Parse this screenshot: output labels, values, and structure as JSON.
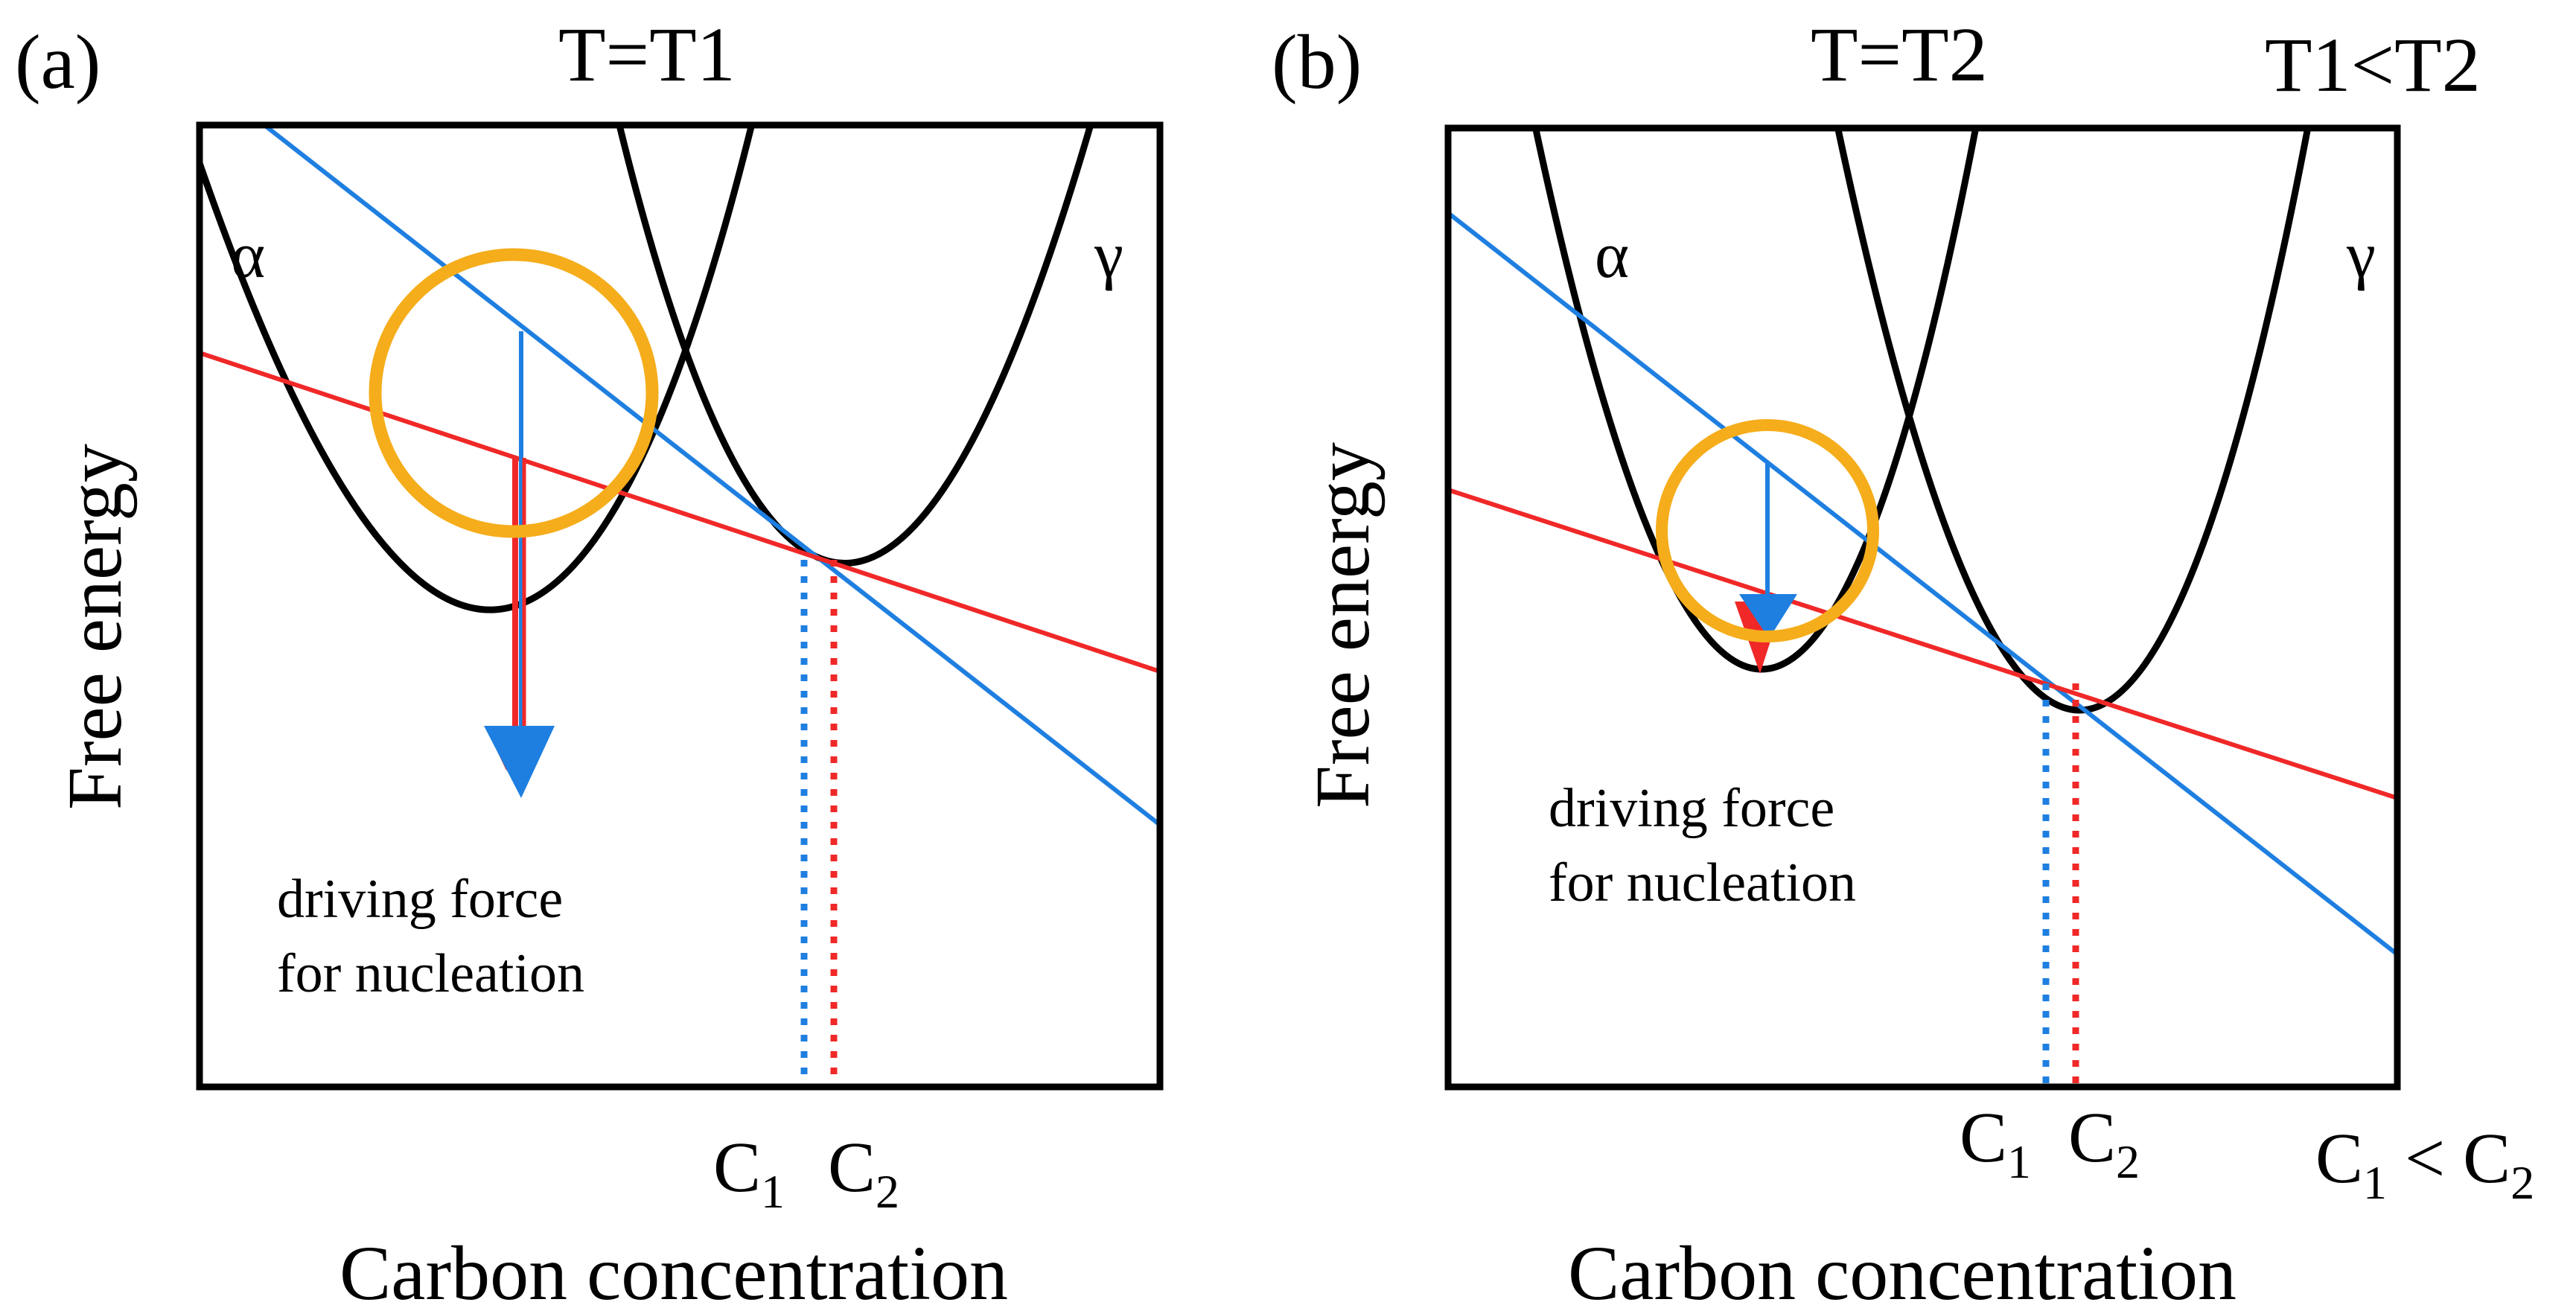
{
  "figure": {
    "panels": [
      {
        "id": "a",
        "panel_label": "(a)",
        "temperature_label": "T=T1",
        "y_axis_title": "Free energy",
        "x_axis_title": "Carbon concentration",
        "phase_left": "α",
        "phase_right": "γ",
        "annotation_line1": "driving force",
        "annotation_line2": "for nucleation",
        "c1": {
          "base": "C",
          "sub": "1"
        },
        "c2": {
          "base": "C",
          "sub": "2"
        }
      },
      {
        "id": "b",
        "panel_label": "(b)",
        "temperature_label": "T=T2",
        "relation_top": "T1<T2",
        "y_axis_title": "Free energy",
        "x_axis_title": "Carbon concentration",
        "phase_left": "α",
        "phase_right": "γ",
        "annotation_line1": "driving force",
        "annotation_line2": "for nucleation",
        "c1": {
          "base": "C",
          "sub": "1"
        },
        "c2": {
          "base": "C",
          "sub": "2"
        },
        "relation_bottom": {
          "left_base": "C",
          "left_sub": "1",
          "op": " < ",
          "right_base": "C",
          "right_sub": "2"
        }
      }
    ],
    "colors": {
      "blue": "#1f7fe0",
      "red": "#f02828",
      "orange": "#f5ad1b",
      "black": "#000000"
    }
  }
}
